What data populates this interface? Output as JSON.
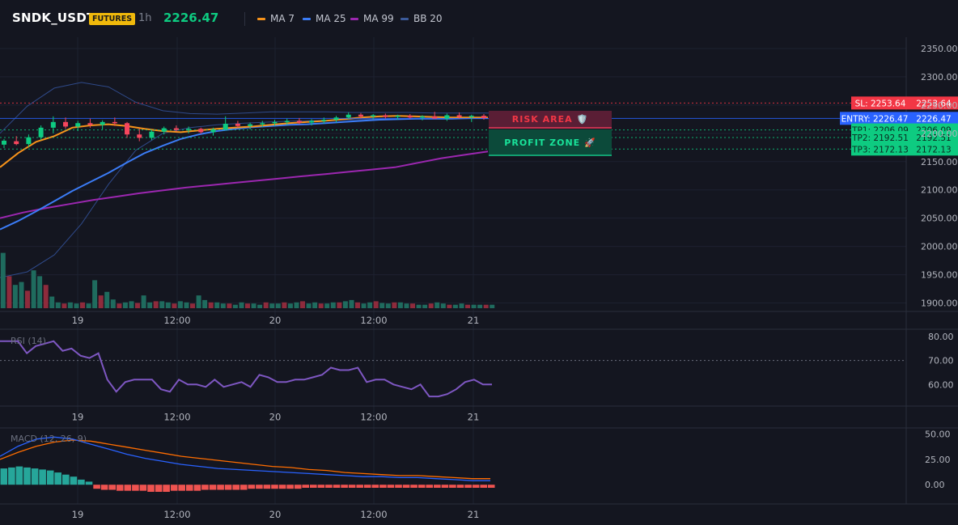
{
  "header": {
    "symbol": "SNDK_USDT",
    "badge": "FUTURES",
    "timeframe": "1h",
    "last_price": "2226.47",
    "legend": [
      {
        "label": "MA 7",
        "color": "#f7931a"
      },
      {
        "label": "MA 25",
        "color": "#3b7cf6"
      },
      {
        "label": "MA 99",
        "color": "#9c27b0"
      },
      {
        "label": "BB 20",
        "color": "#2f4a8a"
      }
    ]
  },
  "colors": {
    "up": "#26a69a",
    "up_bright": "#0ecb81",
    "down": "#f6465d",
    "ma7": "#f7931a",
    "ma25": "#3b7cf6",
    "ma99": "#9c27b0",
    "bb": "#2f4a8a",
    "rsi": "#7e57c2",
    "macd": "#2962ff",
    "signal": "#ff6d00",
    "sl": "#f23645",
    "entry": "#2962ff",
    "tp": "#0ecb81"
  },
  "time_labels": [
    "19",
    "12:00",
    "20",
    "12:00",
    "21"
  ],
  "zones": {
    "risk": "RISK AREA 🛡️",
    "profit": "PROFIT ZONE 🚀"
  },
  "levels": [
    {
      "key": "sl",
      "label": "SL: 2253.64",
      "value": 2253.64,
      "value_text": "2253.64"
    },
    {
      "key": "entry",
      "label": "ENTRY: 2226.47",
      "value": 2226.47,
      "value_text": "2226.47"
    },
    {
      "key": "tp1",
      "label": "TP1: 2206.09",
      "value": 2206.09,
      "value_text": "2206.09"
    },
    {
      "key": "tp2",
      "label": "TP2: 2192.51",
      "value": 2192.51,
      "value_text": "2192.51"
    },
    {
      "key": "tp3",
      "label": "TP3: 2172.13",
      "value": 2172.13,
      "value_text": "2172.13"
    }
  ],
  "chart_data": [
    {
      "type": "candlestick",
      "title": "",
      "ylim": [
        1885,
        2370
      ],
      "y_ticks": [
        2350,
        2300,
        2250,
        2200,
        2150,
        2100,
        2050,
        2000,
        1950,
        1900
      ],
      "y_tick_labels": [
        "2350.00",
        "2300.00",
        "2250.00",
        "2200.00",
        "2150.00",
        "2100.00",
        "2050.00",
        "2000.00",
        "1950.00",
        "1900.00"
      ],
      "x_tick_labels": [
        "19",
        "12:00",
        "20",
        "12:00",
        "21"
      ],
      "candles": [
        [
          2180,
          2190,
          2174,
          2187
        ],
        [
          2186,
          2195,
          2179,
          2181
        ],
        [
          2181,
          2198,
          2176,
          2193
        ],
        [
          2193,
          2214,
          2188,
          2210
        ],
        [
          2210,
          2230,
          2200,
          2220
        ],
        [
          2220,
          2228,
          2208,
          2212
        ],
        [
          2212,
          2222,
          2204,
          2218
        ],
        [
          2218,
          2226,
          2210,
          2215
        ],
        [
          2215,
          2223,
          2207,
          2220
        ],
        [
          2220,
          2228,
          2213,
          2218
        ],
        [
          2218,
          2220,
          2192,
          2198
        ],
        [
          2198,
          2208,
          2186,
          2192
        ],
        [
          2192,
          2206,
          2188,
          2203
        ],
        [
          2203,
          2212,
          2198,
          2209
        ],
        [
          2209,
          2214,
          2203,
          2206
        ],
        [
          2206,
          2212,
          2200,
          2208
        ],
        [
          2208,
          2210,
          2199,
          2202
        ],
        [
          2202,
          2210,
          2196,
          2207
        ],
        [
          2207,
          2230,
          2205,
          2217
        ],
        [
          2217,
          2222,
          2210,
          2213
        ],
        [
          2213,
          2219,
          2207,
          2216
        ],
        [
          2216,
          2222,
          2211,
          2218
        ],
        [
          2218,
          2224,
          2213,
          2220
        ],
        [
          2220,
          2226,
          2215,
          2222
        ],
        [
          2222,
          2227,
          2216,
          2219
        ],
        [
          2219,
          2225,
          2214,
          2222
        ],
        [
          2222,
          2228,
          2217,
          2224
        ],
        [
          2224,
          2231,
          2219,
          2228
        ],
        [
          2228,
          2237,
          2225,
          2233
        ],
        [
          2233,
          2236,
          2226,
          2230
        ],
        [
          2230,
          2234,
          2225,
          2232
        ],
        [
          2232,
          2235,
          2226,
          2229
        ],
        [
          2229,
          2233,
          2224,
          2231
        ],
        [
          2231,
          2234,
          2226,
          2228
        ],
        [
          2228,
          2232,
          2223,
          2230
        ],
        [
          2230,
          2238,
          2227,
          2226
        ],
        [
          2226,
          2235,
          2222,
          2232
        ],
        [
          2232,
          2237,
          2226,
          2229
        ],
        [
          2229,
          2233,
          2220,
          2231
        ],
        [
          2231,
          2234,
          2224,
          2227
        ]
      ],
      "volumes": [
        95,
        55,
        40,
        45,
        30,
        65,
        55,
        40,
        20,
        10,
        8,
        10,
        8,
        10,
        8,
        48,
        22,
        28,
        15,
        8,
        10,
        12,
        9,
        22,
        10,
        12,
        12,
        10,
        8,
        12,
        10,
        8,
        22,
        14,
        10,
        10,
        8,
        8,
        6,
        10,
        8,
        8,
        6,
        10,
        8,
        8,
        10,
        8,
        10,
        12,
        8,
        10,
        8,
        8,
        10,
        10,
        12,
        14,
        10,
        8,
        10,
        12,
        9,
        8,
        10,
        10,
        8,
        8,
        6,
        6,
        8,
        10,
        8,
        6,
        6,
        8,
        6,
        6,
        6,
        6,
        6
      ],
      "series": [
        {
          "name": "MA 7",
          "values": [
            2140,
            2165,
            2185,
            2195,
            2210,
            2214,
            2216,
            2213,
            2208,
            2204,
            2202,
            2205,
            2208,
            2210,
            2212,
            2215,
            2218,
            2220,
            2222,
            2225,
            2228,
            2230,
            2231,
            2230,
            2229,
            2228,
            2228,
            2228
          ]
        },
        {
          "name": "MA 25",
          "values": [
            2030,
            2045,
            2062,
            2080,
            2098,
            2114,
            2130,
            2148,
            2165,
            2178,
            2190,
            2198,
            2204,
            2208,
            2211,
            2213,
            2215,
            2216,
            2218,
            2220,
            2222,
            2224,
            2225,
            2226,
            2226,
            2226,
            2227,
            2227
          ]
        },
        {
          "name": "MA 99",
          "values": [
            2050,
            2060,
            2068,
            2075,
            2082,
            2088,
            2094,
            2099,
            2104,
            2108,
            2112,
            2116,
            2120,
            2124,
            2128,
            2132,
            2136,
            2140,
            2148,
            2156,
            2162,
            2168
          ]
        },
        {
          "name": "BB 20",
          "values": [
            1945,
            1955,
            1985,
            2040,
            2110,
            2170,
            2200,
            2210,
            2215,
            2218,
            2220,
            2222,
            2223,
            2224,
            2225,
            2225,
            2226,
            2226,
            2226
          ]
        }
      ]
    },
    {
      "type": "line",
      "title": "RSI (14)",
      "ylim": [
        51,
        83
      ],
      "y_ticks": [
        80,
        70,
        60
      ],
      "y_tick_labels": [
        "80.00",
        "70.00",
        "60.00"
      ],
      "x_tick_labels": [
        "19",
        "12:00",
        "20",
        "12:00",
        "21"
      ],
      "series": [
        {
          "name": "RSI (14)",
          "values": [
            78,
            78,
            78,
            73,
            76,
            77,
            78,
            74,
            75,
            72,
            71,
            73,
            62,
            57,
            61,
            62,
            62,
            62,
            58,
            57,
            62,
            60,
            60,
            59,
            62,
            59,
            60,
            61,
            59,
            64,
            63,
            61,
            61,
            62,
            62,
            63,
            64,
            67,
            66,
            66,
            67,
            61,
            62,
            62,
            60,
            59,
            58,
            60,
            55,
            55,
            56,
            58,
            61,
            62,
            60,
            60
          ]
        }
      ]
    },
    {
      "type": "bar",
      "title": "MACD (12, 26, 9)",
      "ylim": [
        -19,
        56
      ],
      "y_ticks": [
        50,
        25,
        0
      ],
      "y_tick_labels": [
        "50.00",
        "25.00",
        "0.00"
      ],
      "x_tick_labels": [
        "19",
        "12:00",
        "20",
        "12:00",
        "21"
      ],
      "histogram": [
        16,
        17,
        18,
        17,
        16,
        15,
        14,
        12,
        10,
        8,
        5,
        3,
        -4,
        -5,
        -5,
        -6,
        -6,
        -6,
        -6,
        -7,
        -7,
        -7,
        -6,
        -6,
        -6,
        -6,
        -5,
        -5,
        -5,
        -5,
        -5,
        -5,
        -4,
        -4,
        -4,
        -4,
        -4,
        -4,
        -4,
        -3,
        -3,
        -3,
        -3,
        -3,
        -3,
        -3,
        -3,
        -3,
        -3,
        -3,
        -3,
        -3,
        -3,
        -3,
        -3,
        -3,
        -3,
        -3,
        -3,
        -3,
        -3,
        -3,
        -3,
        -3
      ],
      "series": [
        {
          "name": "MACD",
          "values": [
            28,
            38,
            45,
            47,
            45,
            40,
            35,
            30,
            26,
            23,
            20,
            18,
            16,
            15,
            14,
            13,
            12,
            11,
            10,
            9,
            8,
            8,
            7,
            7,
            6,
            5,
            4,
            4
          ]
        },
        {
          "name": "Signal",
          "values": [
            25,
            32,
            38,
            42,
            44,
            43,
            40,
            37,
            34,
            31,
            28,
            26,
            24,
            22,
            20,
            18,
            17,
            15,
            14,
            12,
            11,
            10,
            9,
            9,
            8,
            7,
            6,
            6
          ]
        }
      ]
    }
  ]
}
